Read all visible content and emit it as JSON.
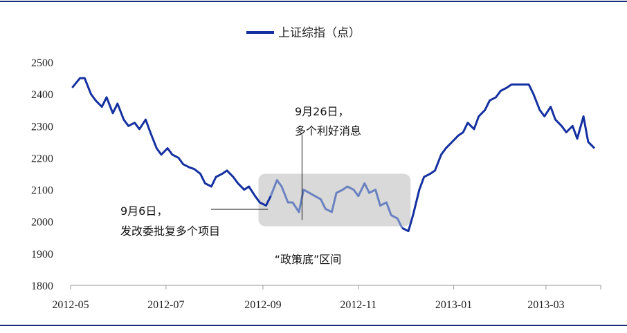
{
  "chart_data": {
    "type": "line",
    "title": "",
    "legend_position": "top-center",
    "xlabel": "",
    "ylabel": "",
    "ylim": [
      1800,
      2500
    ],
    "ytick_values": [
      1800,
      1900,
      2000,
      2100,
      2200,
      2300,
      2400,
      2500
    ],
    "ytick_labels": [
      "1800",
      "1900",
      "2000",
      "2100",
      "2200",
      "2300",
      "2400",
      "2500"
    ],
    "xlim": [
      "2012-05-01",
      "2013-04-05"
    ],
    "xtick_values": [
      "2012-05-01",
      "2012-07-01",
      "2012-09-01",
      "2012-11-01",
      "2013-01-01",
      "2013-03-01"
    ],
    "xtick_labels": [
      "2012-05",
      "2012-07",
      "2012-09",
      "2012-11",
      "2013-01",
      "2013-03"
    ],
    "grid": false,
    "colors": {
      "series": "#1530a0",
      "highlight_line": "#6a82c0",
      "band": "#d9d9d9",
      "frame": "#1a2e7a"
    },
    "series": [
      {
        "name": "上证综指（点）",
        "x": [
          "2012-05-02",
          "2012-05-07",
          "2012-05-10",
          "2012-05-14",
          "2012-05-17",
          "2012-05-21",
          "2012-05-24",
          "2012-05-28",
          "2012-05-31",
          "2012-06-04",
          "2012-06-07",
          "2012-06-11",
          "2012-06-14",
          "2012-06-18",
          "2012-06-21",
          "2012-06-25",
          "2012-06-28",
          "2012-07-02",
          "2012-07-05",
          "2012-07-09",
          "2012-07-12",
          "2012-07-16",
          "2012-07-19",
          "2012-07-23",
          "2012-07-26",
          "2012-07-30",
          "2012-08-02",
          "2012-08-06",
          "2012-08-09",
          "2012-08-13",
          "2012-08-16",
          "2012-08-20",
          "2012-08-23",
          "2012-08-27",
          "2012-08-30",
          "2012-09-03",
          "2012-09-06",
          "2012-09-10",
          "2012-09-13",
          "2012-09-17",
          "2012-09-20",
          "2012-09-24",
          "2012-09-27",
          "2012-10-08",
          "2012-10-11",
          "2012-10-15",
          "2012-10-18",
          "2012-10-22",
          "2012-10-25",
          "2012-10-29",
          "2012-11-01",
          "2012-11-05",
          "2012-11-08",
          "2012-11-12",
          "2012-11-15",
          "2012-11-19",
          "2012-11-22",
          "2012-11-26",
          "2012-11-29",
          "2012-12-03",
          "2012-12-06",
          "2012-12-10",
          "2012-12-13",
          "2012-12-17",
          "2012-12-20",
          "2012-12-24",
          "2012-12-27",
          "2013-01-04",
          "2013-01-07",
          "2013-01-10",
          "2013-01-14",
          "2013-01-17",
          "2013-01-21",
          "2013-01-24",
          "2013-01-28",
          "2013-01-31",
          "2013-02-04",
          "2013-02-07",
          "2013-02-18",
          "2013-02-21",
          "2013-02-25",
          "2013-02-28",
          "2013-03-04",
          "2013-03-07",
          "2013-03-11",
          "2013-03-14",
          "2013-03-18",
          "2013-03-21",
          "2013-03-25",
          "2013-03-28",
          "2013-04-01"
        ],
        "values": [
          2420,
          2450,
          2450,
          2400,
          2380,
          2360,
          2390,
          2340,
          2370,
          2320,
          2300,
          2310,
          2290,
          2320,
          2280,
          2230,
          2210,
          2230,
          2210,
          2200,
          2180,
          2170,
          2165,
          2150,
          2120,
          2110,
          2140,
          2150,
          2160,
          2140,
          2120,
          2100,
          2110,
          2080,
          2060,
          2050,
          2080,
          2130,
          2110,
          2060,
          2060,
          2030,
          2100,
          2070,
          2040,
          2030,
          2090,
          2100,
          2110,
          2100,
          2080,
          2120,
          2090,
          2100,
          2050,
          2060,
          2020,
          2010,
          1980,
          1970,
          2020,
          2100,
          2140,
          2150,
          2160,
          2210,
          2230,
          2270,
          2280,
          2310,
          2290,
          2330,
          2350,
          2380,
          2390,
          2410,
          2420,
          2430,
          2430,
          2400,
          2350,
          2330,
          2360,
          2320,
          2300,
          2280,
          2300,
          2260,
          2330,
          2250,
          2230
        ]
      }
    ],
    "highlight_start": "2012-09-07",
    "highlight_end": "2012-11-30",
    "band_ylim": [
      1985,
      2150
    ],
    "annotations": [
      {
        "date": "2012-09-06",
        "value": 2040,
        "lines": [
          "9月6日，",
          "发改委批复多个项目"
        ]
      },
      {
        "date": "2012-09-26",
        "value": 2005,
        "lines": [
          "9月26日，",
          "多个利好消息"
        ]
      },
      {
        "label": "“政策底”区间"
      }
    ]
  }
}
